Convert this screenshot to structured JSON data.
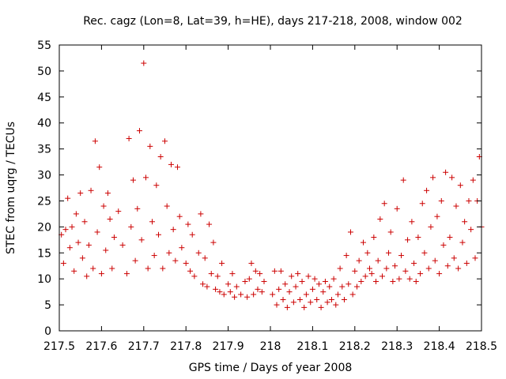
{
  "chart_data": {
    "type": "scatter",
    "title": "Rec. cagz (Lon=8, Lat=39, h=HE), days 217-218, 2008, window 002",
    "xlabel": "GPS time / Days of year 2008",
    "ylabel": "STEC from uqrg / TECUs",
    "xlim": [
      217.5,
      218.5
    ],
    "ylim": [
      0,
      55
    ],
    "xticks": [
      "217.5",
      "217.6",
      "217.7",
      "217.8",
      "217.9",
      "218",
      "218.1",
      "218.2",
      "218.3",
      "218.4",
      "218.5"
    ],
    "yticks": [
      "0",
      "5",
      "10",
      "15",
      "20",
      "25",
      "30",
      "35",
      "40",
      "45",
      "50",
      "55"
    ],
    "grid": false,
    "legend": "none",
    "marker": "plus",
    "marker_color": "#cc0000",
    "series": [
      {
        "points": [
          [
            217.505,
            18.5
          ],
          [
            217.51,
            13.0
          ],
          [
            217.515,
            19.5
          ],
          [
            217.52,
            25.5
          ],
          [
            217.525,
            16.0
          ],
          [
            217.53,
            20.0
          ],
          [
            217.535,
            11.5
          ],
          [
            217.54,
            22.5
          ],
          [
            217.545,
            17.0
          ],
          [
            217.55,
            26.5
          ],
          [
            217.555,
            14.0
          ],
          [
            217.56,
            21.0
          ],
          [
            217.565,
            10.5
          ],
          [
            217.57,
            16.5
          ],
          [
            217.575,
            27.0
          ],
          [
            217.58,
            12.0
          ],
          [
            217.585,
            36.5
          ],
          [
            217.59,
            19.0
          ],
          [
            217.595,
            31.5
          ],
          [
            217.6,
            11.0
          ],
          [
            217.605,
            24.0
          ],
          [
            217.61,
            15.5
          ],
          [
            217.615,
            26.5
          ],
          [
            217.62,
            21.5
          ],
          [
            217.625,
            12.0
          ],
          [
            217.63,
            18.0
          ],
          [
            217.64,
            23.0
          ],
          [
            217.65,
            16.5
          ],
          [
            217.66,
            11.0
          ],
          [
            217.665,
            37.0
          ],
          [
            217.67,
            20.0
          ],
          [
            217.675,
            29.0
          ],
          [
            217.68,
            13.5
          ],
          [
            217.685,
            23.5
          ],
          [
            217.69,
            38.5
          ],
          [
            217.695,
            17.5
          ],
          [
            217.7,
            51.5
          ],
          [
            217.705,
            29.5
          ],
          [
            217.71,
            12.0
          ],
          [
            217.715,
            35.5
          ],
          [
            217.72,
            21.0
          ],
          [
            217.725,
            14.5
          ],
          [
            217.73,
            28.0
          ],
          [
            217.735,
            18.5
          ],
          [
            217.74,
            33.5
          ],
          [
            217.745,
            12.0
          ],
          [
            217.75,
            36.5
          ],
          [
            217.755,
            24.0
          ],
          [
            217.76,
            15.0
          ],
          [
            217.765,
            32.0
          ],
          [
            217.77,
            19.5
          ],
          [
            217.775,
            13.5
          ],
          [
            217.78,
            31.5
          ],
          [
            217.785,
            22.0
          ],
          [
            217.79,
            16.0
          ],
          [
            217.8,
            13.0
          ],
          [
            217.805,
            20.5
          ],
          [
            217.81,
            11.5
          ],
          [
            217.815,
            18.5
          ],
          [
            217.82,
            10.5
          ],
          [
            217.83,
            15.0
          ],
          [
            217.835,
            22.5
          ],
          [
            217.84,
            9.0
          ],
          [
            217.845,
            14.0
          ],
          [
            217.85,
            8.5
          ],
          [
            217.855,
            20.5
          ],
          [
            217.86,
            11.0
          ],
          [
            217.865,
            17.0
          ],
          [
            217.87,
            8.0
          ],
          [
            217.875,
            10.5
          ],
          [
            217.88,
            7.5
          ],
          [
            217.885,
            13.0
          ],
          [
            217.89,
            7.0
          ],
          [
            217.9,
            9.0
          ],
          [
            217.905,
            7.5
          ],
          [
            217.91,
            11.0
          ],
          [
            217.915,
            6.5
          ],
          [
            217.92,
            8.5
          ],
          [
            217.93,
            7.0
          ],
          [
            217.94,
            9.5
          ],
          [
            217.945,
            6.5
          ],
          [
            217.95,
            10.0
          ],
          [
            217.955,
            13.0
          ],
          [
            217.96,
            7.0
          ],
          [
            217.965,
            11.5
          ],
          [
            217.97,
            8.0
          ],
          [
            217.975,
            11.0
          ],
          [
            217.98,
            7.5
          ],
          [
            217.985,
            9.5
          ],
          [
            218.005,
            7.0
          ],
          [
            218.01,
            11.5
          ],
          [
            218.015,
            5.0
          ],
          [
            218.02,
            8.0
          ],
          [
            218.025,
            11.5
          ],
          [
            218.03,
            6.0
          ],
          [
            218.035,
            9.0
          ],
          [
            218.04,
            4.5
          ],
          [
            218.045,
            7.5
          ],
          [
            218.05,
            10.5
          ],
          [
            218.055,
            5.5
          ],
          [
            218.06,
            8.5
          ],
          [
            218.065,
            11.0
          ],
          [
            218.07,
            6.0
          ],
          [
            218.075,
            9.5
          ],
          [
            218.08,
            4.5
          ],
          [
            218.085,
            7.0
          ],
          [
            218.09,
            10.5
          ],
          [
            218.095,
            5.5
          ],
          [
            218.1,
            8.0
          ],
          [
            218.105,
            10.0
          ],
          [
            218.11,
            6.0
          ],
          [
            218.115,
            9.0
          ],
          [
            218.12,
            4.5
          ],
          [
            218.125,
            7.5
          ],
          [
            218.13,
            9.5
          ],
          [
            218.135,
            5.5
          ],
          [
            218.14,
            8.5
          ],
          [
            218.145,
            6.0
          ],
          [
            218.15,
            10.0
          ],
          [
            218.155,
            5.0
          ],
          [
            218.16,
            7.0
          ],
          [
            218.165,
            12.0
          ],
          [
            218.17,
            8.5
          ],
          [
            218.175,
            6.0
          ],
          [
            218.18,
            14.5
          ],
          [
            218.185,
            9.0
          ],
          [
            218.19,
            19.0
          ],
          [
            218.195,
            7.0
          ],
          [
            218.2,
            11.5
          ],
          [
            218.205,
            8.5
          ],
          [
            218.21,
            13.5
          ],
          [
            218.215,
            9.5
          ],
          [
            218.22,
            17.0
          ],
          [
            218.225,
            10.5
          ],
          [
            218.23,
            15.0
          ],
          [
            218.235,
            12.0
          ],
          [
            218.24,
            11.0
          ],
          [
            218.245,
            18.0
          ],
          [
            218.25,
            9.5
          ],
          [
            218.255,
            13.5
          ],
          [
            218.26,
            21.5
          ],
          [
            218.265,
            10.5
          ],
          [
            218.27,
            24.5
          ],
          [
            218.275,
            12.0
          ],
          [
            218.28,
            15.0
          ],
          [
            218.285,
            19.0
          ],
          [
            218.29,
            9.5
          ],
          [
            218.295,
            12.5
          ],
          [
            218.3,
            23.5
          ],
          [
            218.305,
            10.0
          ],
          [
            218.31,
            14.5
          ],
          [
            218.315,
            29.0
          ],
          [
            218.32,
            11.5
          ],
          [
            218.325,
            17.5
          ],
          [
            218.33,
            10.0
          ],
          [
            218.335,
            21.0
          ],
          [
            218.34,
            13.0
          ],
          [
            218.345,
            9.5
          ],
          [
            218.35,
            18.0
          ],
          [
            218.355,
            11.0
          ],
          [
            218.36,
            24.5
          ],
          [
            218.365,
            15.0
          ],
          [
            218.37,
            27.0
          ],
          [
            218.375,
            12.0
          ],
          [
            218.38,
            20.0
          ],
          [
            218.385,
            29.5
          ],
          [
            218.39,
            13.5
          ],
          [
            218.395,
            22.0
          ],
          [
            218.4,
            11.0
          ],
          [
            218.405,
            25.0
          ],
          [
            218.41,
            16.5
          ],
          [
            218.415,
            30.5
          ],
          [
            218.42,
            12.5
          ],
          [
            218.425,
            18.0
          ],
          [
            218.43,
            29.5
          ],
          [
            218.435,
            14.0
          ],
          [
            218.44,
            24.0
          ],
          [
            218.445,
            12.0
          ],
          [
            218.45,
            28.0
          ],
          [
            218.455,
            17.0
          ],
          [
            218.46,
            21.0
          ],
          [
            218.465,
            13.0
          ],
          [
            218.47,
            25.0
          ],
          [
            218.475,
            19.5
          ],
          [
            218.48,
            29.0
          ],
          [
            218.485,
            14.0
          ],
          [
            218.49,
            25.0
          ],
          [
            218.495,
            33.5
          ],
          [
            218.5,
            20.0
          ]
        ]
      }
    ]
  }
}
